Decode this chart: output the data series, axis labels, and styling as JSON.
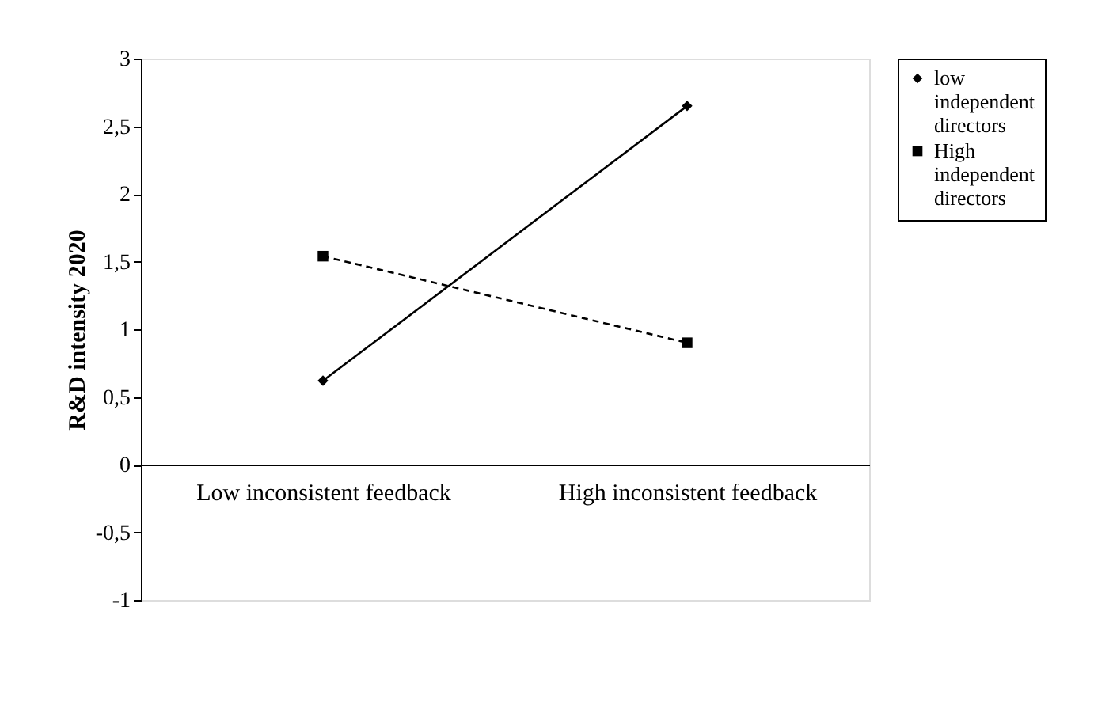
{
  "chart_data": {
    "type": "line",
    "ylabel": "R&D intensity 2020",
    "categories": [
      "Low inconsistent feedback",
      "High inconsistent feedback"
    ],
    "series": [
      {
        "name": "low independent directors",
        "color": "#000000",
        "values": [
          0.62,
          2.65
        ],
        "marker": "diamond",
        "line_style": "solid"
      },
      {
        "name": "High independent directors",
        "color": "#000000",
        "values": [
          1.54,
          0.9
        ],
        "marker": "square",
        "line_style": "dashed"
      }
    ],
    "ylim": [
      -1,
      3
    ],
    "yticks": [
      -1,
      {
        "value": -0.5,
        "label": "-0,5"
      },
      0,
      {
        "value": 0.5,
        "label": "0,5"
      },
      1,
      {
        "value": 1.5,
        "label": "1,5"
      },
      2,
      {
        "value": 2.5,
        "label": "2,5"
      },
      3
    ],
    "grid": false,
    "legend": "right"
  }
}
